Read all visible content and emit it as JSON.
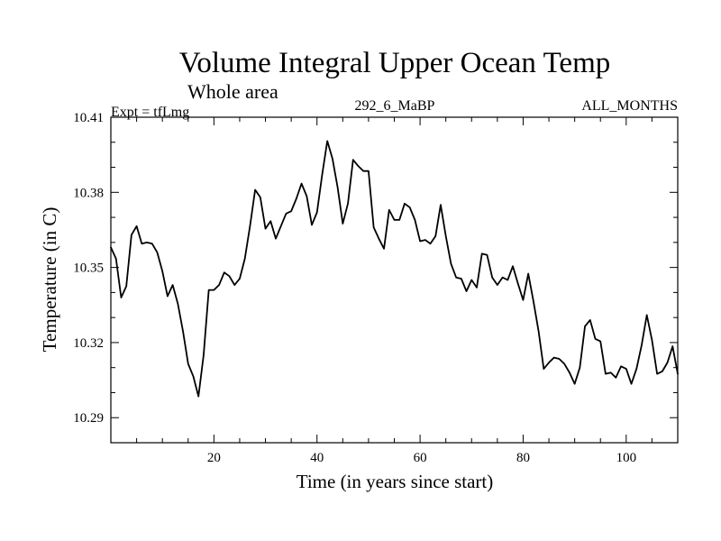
{
  "chart_data": {
    "type": "line",
    "title": "Volume Integral Upper Ocean Temp",
    "subtitle": "Whole area",
    "left_label": "Expt = tfLmg",
    "center_label": "292_6_MaBP",
    "right_label": "ALL_MONTHS",
    "xlabel": "Time (in years since start)",
    "ylabel": "Temperature (in C)",
    "xlim": [
      0,
      110
    ],
    "ylim": [
      10.28,
      10.41
    ],
    "x_ticks": [
      20,
      40,
      60,
      80,
      100
    ],
    "y_ticks": [
      "10.29",
      "10.32",
      "10.35",
      "10.38",
      "10.41"
    ],
    "grid": false,
    "series": [
      {
        "name": "tfLmg",
        "color": "#000000",
        "x": [
          0,
          1,
          2,
          3,
          4,
          5,
          6,
          7,
          8,
          9,
          10,
          11,
          12,
          13,
          14,
          15,
          16,
          17,
          18,
          19,
          20,
          21,
          22,
          23,
          24,
          25,
          26,
          27,
          28,
          29,
          30,
          31,
          32,
          33,
          34,
          35,
          36,
          37,
          38,
          39,
          40,
          41,
          42,
          43,
          44,
          45,
          46,
          47,
          48,
          49,
          50,
          51,
          52,
          53,
          54,
          55,
          56,
          57,
          58,
          59,
          60,
          61,
          62,
          63,
          64,
          65,
          66,
          67,
          68,
          69,
          70,
          71,
          72,
          73,
          74,
          75,
          76,
          77,
          78,
          79,
          80,
          81,
          82,
          83,
          84,
          85,
          86,
          87,
          88,
          89,
          90,
          91,
          92,
          93,
          94,
          95,
          96,
          97,
          98,
          99,
          100,
          101,
          102,
          103,
          104,
          105,
          106,
          107,
          108,
          109,
          110
        ],
        "values": [
          10.358,
          10.3535,
          10.338,
          10.3425,
          10.363,
          10.3665,
          10.3595,
          10.36,
          10.3595,
          10.356,
          10.3485,
          10.3385,
          10.343,
          10.3355,
          10.3245,
          10.3115,
          10.3065,
          10.2985,
          10.315,
          10.341,
          10.341,
          10.343,
          10.348,
          10.3465,
          10.343,
          10.3455,
          10.3535,
          10.3665,
          10.381,
          10.378,
          10.3655,
          10.3685,
          10.3615,
          10.3665,
          10.3715,
          10.3725,
          10.3775,
          10.3835,
          10.3785,
          10.367,
          10.372,
          10.387,
          10.4005,
          10.3935,
          10.382,
          10.3675,
          10.3755,
          10.393,
          10.3905,
          10.3885,
          10.3885,
          10.366,
          10.3615,
          10.3575,
          10.373,
          10.369,
          10.369,
          10.3755,
          10.374,
          10.369,
          10.3605,
          10.361,
          10.3595,
          10.3625,
          10.375,
          10.3625,
          10.3515,
          10.346,
          10.3455,
          10.3405,
          10.345,
          10.342,
          10.3555,
          10.355,
          10.346,
          10.343,
          10.346,
          10.345,
          10.3505,
          10.3435,
          10.337,
          10.3475,
          10.3365,
          10.3245,
          10.3095,
          10.312,
          10.314,
          10.3135,
          10.3115,
          10.308,
          10.3035,
          10.31,
          10.3265,
          10.329,
          10.3215,
          10.3205,
          10.3075,
          10.308,
          10.306,
          10.3105,
          10.3095,
          10.3035,
          10.3095,
          10.319,
          10.331,
          10.321,
          10.3075,
          10.3085,
          10.312,
          10.3185,
          10.3075
        ]
      }
    ]
  }
}
